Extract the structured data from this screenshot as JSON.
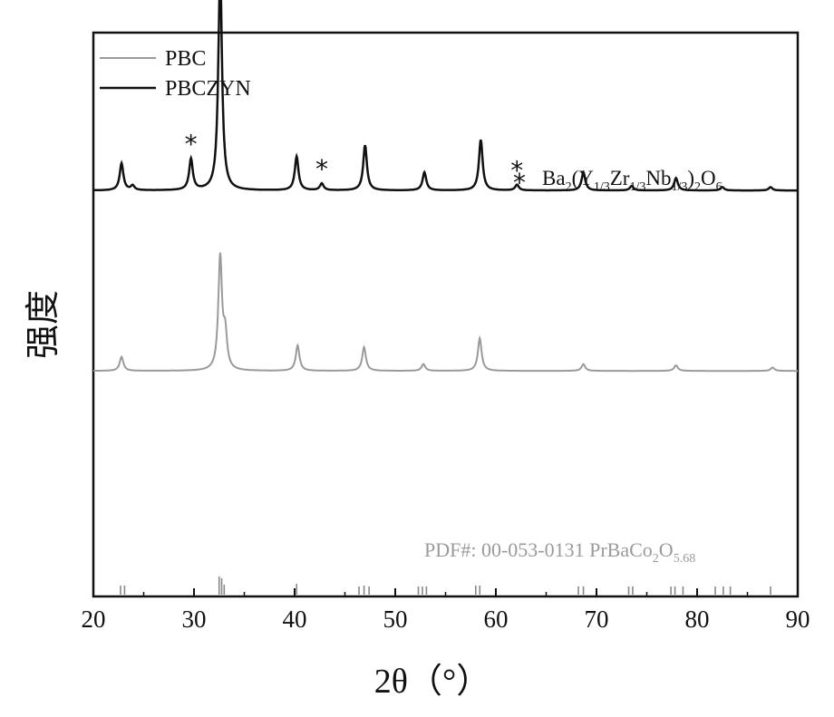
{
  "chart_data": {
    "type": "line",
    "xlabel": "2θ（°）",
    "ylabel": "强度",
    "xlim": [
      20,
      90
    ],
    "xticks": [
      20,
      30,
      40,
      50,
      60,
      70,
      80,
      90
    ],
    "legend_position": "top-left",
    "series": [
      {
        "name": "PBC",
        "color": "#9a9a9a",
        "baseline": 0.4,
        "peaks": [
          [
            22.8,
            0.025
          ],
          [
            32.6,
            0.2
          ],
          [
            33.1,
            0.06
          ],
          [
            40.3,
            0.045
          ],
          [
            46.9,
            0.042
          ],
          [
            52.8,
            0.012
          ],
          [
            58.4,
            0.058
          ],
          [
            68.7,
            0.012
          ],
          [
            77.9,
            0.01
          ],
          [
            87.5,
            0.006
          ]
        ]
      },
      {
        "name": "PBCZYN",
        "color": "#111111",
        "baseline": 0.72,
        "peaks": [
          [
            22.8,
            0.048
          ],
          [
            23.9,
            0.008
          ],
          [
            29.7,
            0.055
          ],
          [
            32.6,
            0.39
          ],
          [
            40.2,
            0.06
          ],
          [
            42.7,
            0.012
          ],
          [
            47.0,
            0.08
          ],
          [
            52.9,
            0.032
          ],
          [
            58.5,
            0.09
          ],
          [
            62.1,
            0.01
          ],
          [
            68.7,
            0.032
          ],
          [
            73.5,
            0.008
          ],
          [
            77.9,
            0.022
          ],
          [
            82.5,
            0.006
          ],
          [
            87.3,
            0.006
          ]
        ]
      }
    ],
    "annotations": {
      "phase_marker": "*",
      "phase_label": {
        "prefix": "Ba",
        "sub1": "2",
        "open": "(Y",
        "sub2": "1/3",
        "mid1": "Zr",
        "sub3": "1/3",
        "mid2": "Nb",
        "sub4": "1/3",
        "close": ")",
        "sub5": "2",
        "tail": "O",
        "sub6": "6"
      },
      "phase_peaks_x": [
        29.7,
        42.7,
        62.1
      ],
      "pdf_label": {
        "main": "PDF#: 00-053-0131 PrBaCo",
        "sub1": "2",
        "mid": "O",
        "sub2": "5.68"
      },
      "reference_lines": [
        {
          "x": 22.7,
          "h": 0.5
        },
        {
          "x": 23.1,
          "h": 0.5
        },
        {
          "x": 32.5,
          "h": 1.0
        },
        {
          "x": 32.75,
          "h": 0.9
        },
        {
          "x": 33.0,
          "h": 0.55
        },
        {
          "x": 40.2,
          "h": 0.6
        },
        {
          "x": 46.4,
          "h": 0.45
        },
        {
          "x": 46.9,
          "h": 0.5
        },
        {
          "x": 47.4,
          "h": 0.45
        },
        {
          "x": 52.3,
          "h": 0.45
        },
        {
          "x": 52.7,
          "h": 0.45
        },
        {
          "x": 53.1,
          "h": 0.45
        },
        {
          "x": 58.0,
          "h": 0.5
        },
        {
          "x": 58.4,
          "h": 0.5
        },
        {
          "x": 68.2,
          "h": 0.45
        },
        {
          "x": 68.7,
          "h": 0.45
        },
        {
          "x": 73.2,
          "h": 0.45
        },
        {
          "x": 73.6,
          "h": 0.45
        },
        {
          "x": 77.4,
          "h": 0.45
        },
        {
          "x": 77.8,
          "h": 0.45
        },
        {
          "x": 78.6,
          "h": 0.45
        },
        {
          "x": 81.8,
          "h": 0.45
        },
        {
          "x": 82.6,
          "h": 0.45
        },
        {
          "x": 83.3,
          "h": 0.45
        },
        {
          "x": 87.3,
          "h": 0.45
        }
      ]
    }
  }
}
